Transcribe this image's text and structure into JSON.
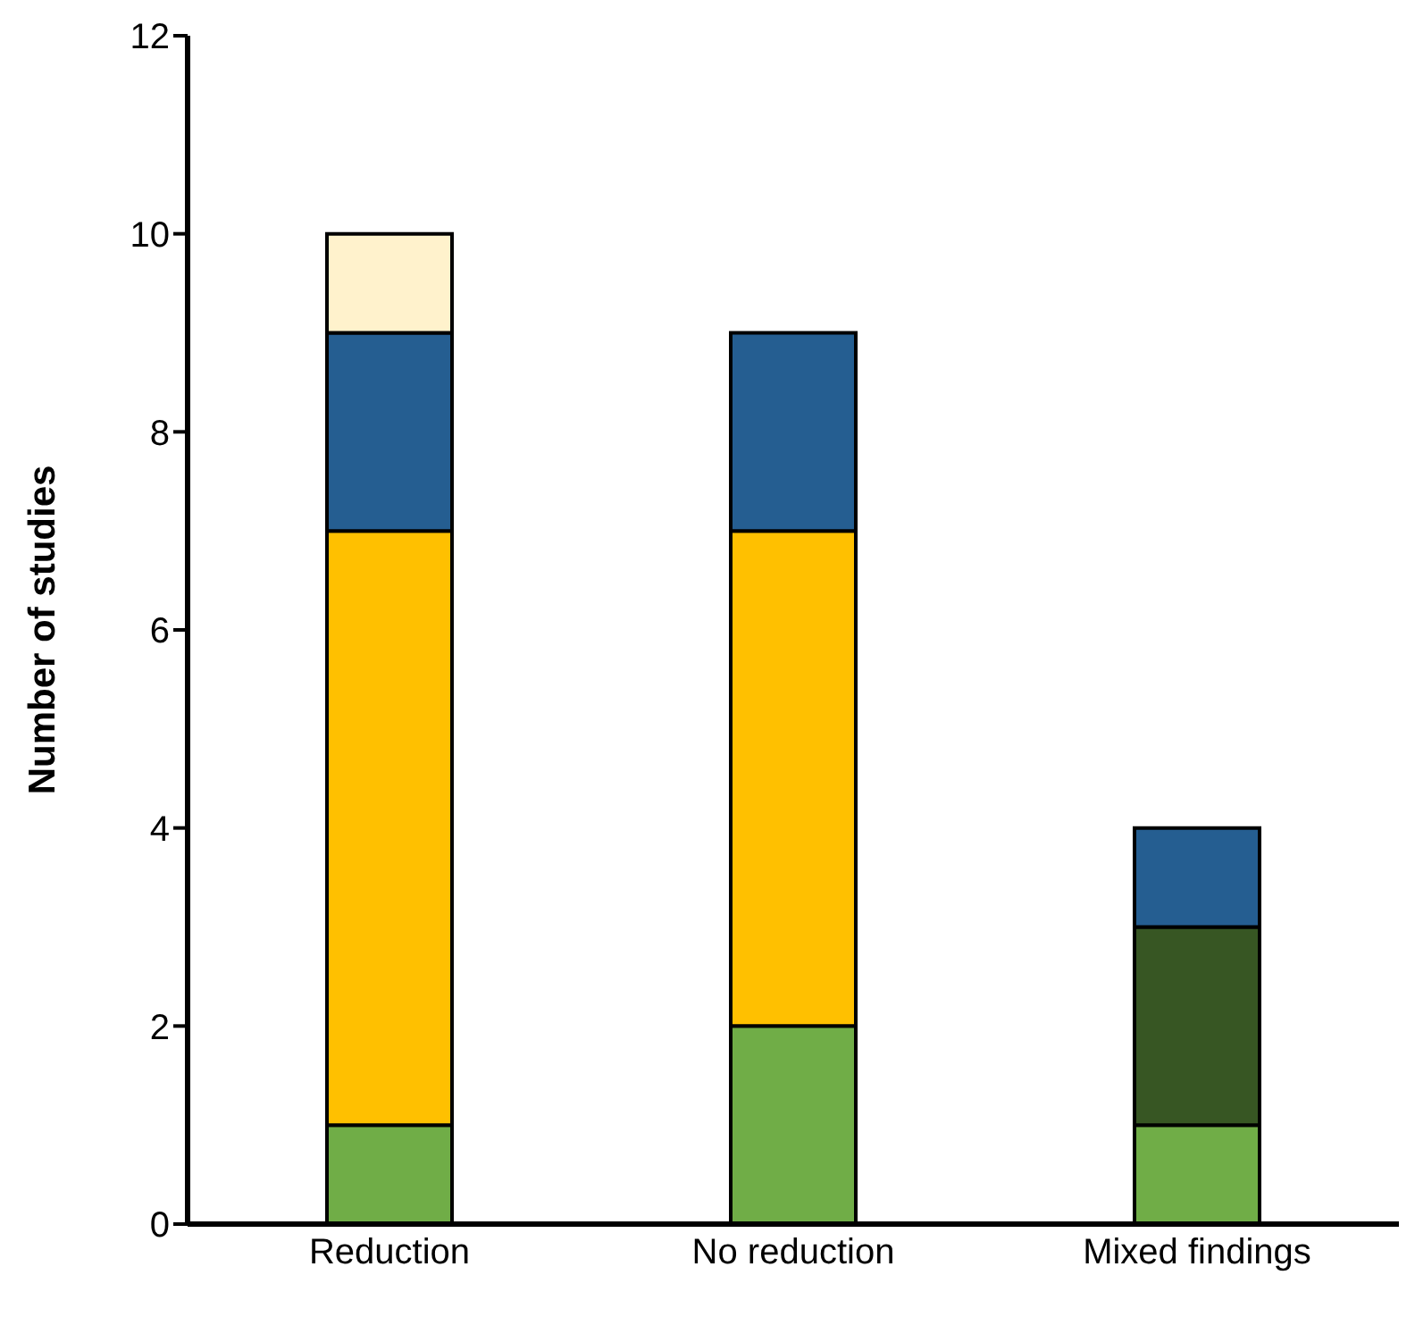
{
  "chart_data": {
    "type": "bar",
    "stacked": true,
    "ylabel": "Number of studies",
    "categories": [
      "Reduction",
      "No reduction",
      "Mixed findings"
    ],
    "series": [
      {
        "color": "#70ad47",
        "values": [
          1,
          2,
          1
        ]
      },
      {
        "color": "#375623",
        "values": [
          0,
          0,
          2
        ]
      },
      {
        "color": "#ffc000",
        "values": [
          6,
          5,
          0
        ]
      },
      {
        "color": "#255e91",
        "values": [
          2,
          2,
          1
        ]
      },
      {
        "color": "#fff2cc",
        "values": [
          1,
          0,
          0
        ]
      }
    ],
    "ylim": [
      0,
      12
    ],
    "yticks": [
      0,
      2,
      4,
      6,
      8,
      10,
      12
    ]
  }
}
